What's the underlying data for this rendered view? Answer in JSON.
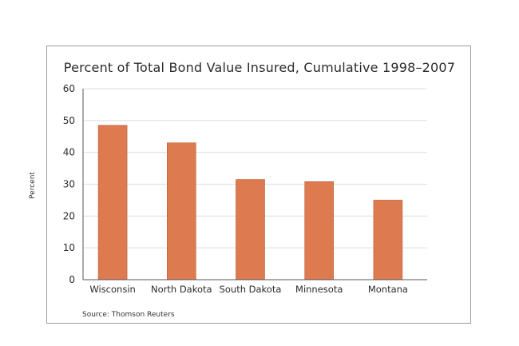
{
  "chart_data": {
    "type": "bar",
    "title": "Percent of Total Bond Value Insured, Cumulative 1998–2007",
    "ylabel": "Percent",
    "xlabel": "",
    "source": "Source: Thomson Reuters",
    "categories": [
      "Wisconsin",
      "North Dakota",
      "South Dakota",
      "Minnesota",
      "Montana"
    ],
    "values": [
      48.5,
      43,
      31.5,
      30.8,
      25
    ],
    "ylim": [
      0,
      60
    ],
    "yticks": [
      0,
      10,
      20,
      30,
      40,
      50,
      60
    ],
    "grid": true,
    "legend": "none",
    "bar_color": "#dd7a50",
    "grid_color": "#dcdcdc",
    "axis_color": "#555555"
  }
}
